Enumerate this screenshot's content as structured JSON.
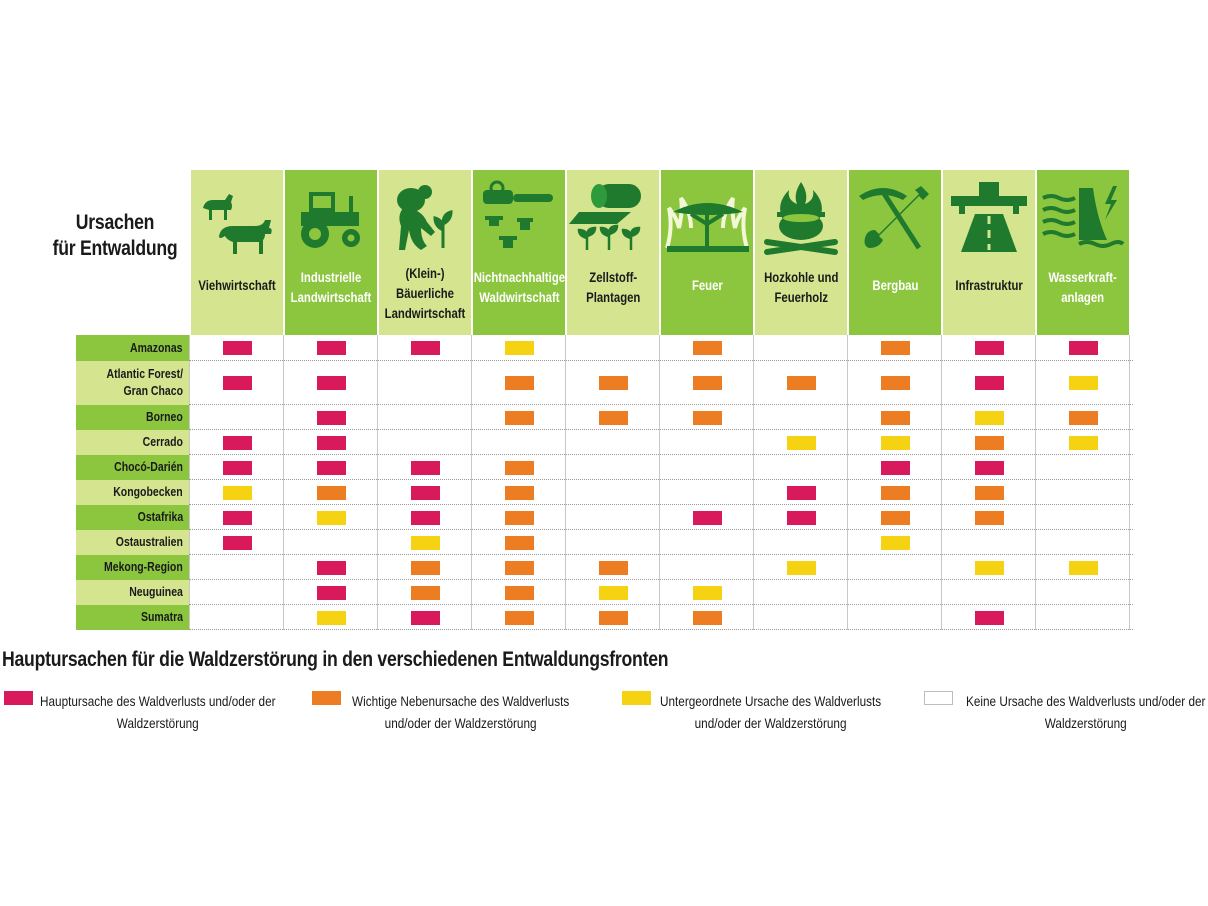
{
  "heading": {
    "line1": "Ursachen",
    "line2": "für Entwaldung"
  },
  "subtitle": "Hauptursachen für die Waldzerstörung in den verschiedenen Entwaldungsfronten",
  "colors": {
    "haupt": "#d81a5c",
    "neben": "#ec7d22",
    "unter": "#f5d312",
    "keine": "#ffffff",
    "header_dark": "#8cc63f",
    "header_light": "#d5e48f",
    "icon": "#1f7a2e"
  },
  "chart_data": {
    "type": "table",
    "title": "Ursachen für Entwaldung",
    "columns": [
      {
        "label": "Viehwirtschaft",
        "icon": "livestock-icon",
        "shade": "light"
      },
      {
        "label": "Industrielle Landwirtschaft",
        "icon": "tractor-icon",
        "shade": "dark"
      },
      {
        "label": "(Klein-) Bäuerliche Landwirtschaft",
        "icon": "farmer-icon",
        "shade": "light"
      },
      {
        "label": "Nichtnachhaltige Waldwirtschaft",
        "icon": "chainsaw-icon",
        "shade": "dark"
      },
      {
        "label": "Zellstoff-Plantagen",
        "icon": "paper-roll-icon",
        "shade": "light"
      },
      {
        "label": "Feuer",
        "icon": "fire-tree-icon",
        "shade": "dark"
      },
      {
        "label": "Hozkohle und Feuerholz",
        "icon": "cooking-fire-icon",
        "shade": "light"
      },
      {
        "label": "Bergbau",
        "icon": "pick-shovel-icon",
        "shade": "dark"
      },
      {
        "label": "Infrastruktur",
        "icon": "highway-icon",
        "shade": "light"
      },
      {
        "label": "Wasserkraft-anlagen",
        "icon": "dam-icon",
        "shade": "dark"
      }
    ],
    "column_lines": [
      [
        "Viehwirtschaft"
      ],
      [
        "Industrielle",
        "Landwirtschaft"
      ],
      [
        "(Klein-)",
        "Bäuerliche",
        "Landwirtschaft"
      ],
      [
        "Nichtnachhaltige",
        "Waldwirtschaft"
      ],
      [
        "Zellstoff-",
        "Plantagen"
      ],
      [
        "Feuer"
      ],
      [
        "Hozkohle und",
        "Feuerholz"
      ],
      [
        "Bergbau"
      ],
      [
        "Infrastruktur"
      ],
      [
        "Wasserkraft-",
        "anlagen"
      ]
    ],
    "rows": [
      {
        "label": "Amazonas",
        "lines": [
          "Amazonas"
        ],
        "shade": "dark",
        "values": [
          "haupt",
          "haupt",
          "haupt",
          "unter",
          "keine",
          "neben",
          "keine",
          "neben",
          "haupt",
          "haupt"
        ]
      },
      {
        "label": "Atlantic Forest/ Gran Chaco",
        "lines": [
          "Atlantic Forest/",
          "Gran Chaco"
        ],
        "shade": "light",
        "values": [
          "haupt",
          "haupt",
          "keine",
          "neben",
          "neben",
          "neben",
          "neben",
          "neben",
          "haupt",
          "unter"
        ]
      },
      {
        "label": "Borneo",
        "lines": [
          "Borneo"
        ],
        "shade": "dark",
        "values": [
          "keine",
          "haupt",
          "keine",
          "neben",
          "neben",
          "neben",
          "keine",
          "neben",
          "unter",
          "neben"
        ]
      },
      {
        "label": "Cerrado",
        "lines": [
          "Cerrado"
        ],
        "shade": "light",
        "values": [
          "haupt",
          "haupt",
          "keine",
          "keine",
          "keine",
          "keine",
          "unter",
          "unter",
          "neben",
          "unter"
        ]
      },
      {
        "label": "Chocó-Darién",
        "lines": [
          "Chocó-Darién"
        ],
        "shade": "dark",
        "values": [
          "haupt",
          "haupt",
          "haupt",
          "neben",
          "keine",
          "keine",
          "keine",
          "haupt",
          "haupt",
          "keine"
        ]
      },
      {
        "label": "Kongobecken",
        "lines": [
          "Kongobecken"
        ],
        "shade": "light",
        "values": [
          "unter",
          "neben",
          "haupt",
          "neben",
          "keine",
          "keine",
          "haupt",
          "neben",
          "neben",
          "keine"
        ]
      },
      {
        "label": "Ostafrika",
        "lines": [
          "Ostafrika"
        ],
        "shade": "dark",
        "values": [
          "haupt",
          "unter",
          "haupt",
          "neben",
          "keine",
          "haupt",
          "haupt",
          "neben",
          "neben",
          "keine"
        ]
      },
      {
        "label": "Ostaustralien",
        "lines": [
          "Ostaustralien"
        ],
        "shade": "light",
        "values": [
          "haupt",
          "keine",
          "unter",
          "neben",
          "keine",
          "keine",
          "keine",
          "unter",
          "keine",
          "keine"
        ]
      },
      {
        "label": "Mekong-Region",
        "lines": [
          "Mekong-Region"
        ],
        "shade": "dark",
        "values": [
          "keine",
          "haupt",
          "neben",
          "neben",
          "neben",
          "keine",
          "unter",
          "keine",
          "unter",
          "unter"
        ]
      },
      {
        "label": "Neuguinea",
        "lines": [
          "Neuguinea"
        ],
        "shade": "light",
        "values": [
          "keine",
          "haupt",
          "neben",
          "neben",
          "unter",
          "unter",
          "keine",
          "keine",
          "keine",
          "keine"
        ]
      },
      {
        "label": "Sumatra",
        "lines": [
          "Sumatra"
        ],
        "shade": "dark",
        "values": [
          "keine",
          "unter",
          "haupt",
          "neben",
          "neben",
          "neben",
          "keine",
          "keine",
          "haupt",
          "keine"
        ]
      }
    ],
    "legend": [
      {
        "key": "haupt",
        "lines": [
          "Hauptursache des Waldverlusts und/oder der",
          "Waldzerstörung"
        ]
      },
      {
        "key": "neben",
        "lines": [
          "Wichtige Nebenursache des Waldverlusts",
          "und/oder der Waldzerstörung"
        ]
      },
      {
        "key": "unter",
        "lines": [
          "Untergeordnete Ursache des Waldverlusts",
          "und/oder der Waldzerstörung"
        ]
      },
      {
        "key": "keine",
        "lines": [
          "Keine Ursache des Waldverlusts und/oder der",
          "Waldzerstörung"
        ]
      }
    ]
  }
}
